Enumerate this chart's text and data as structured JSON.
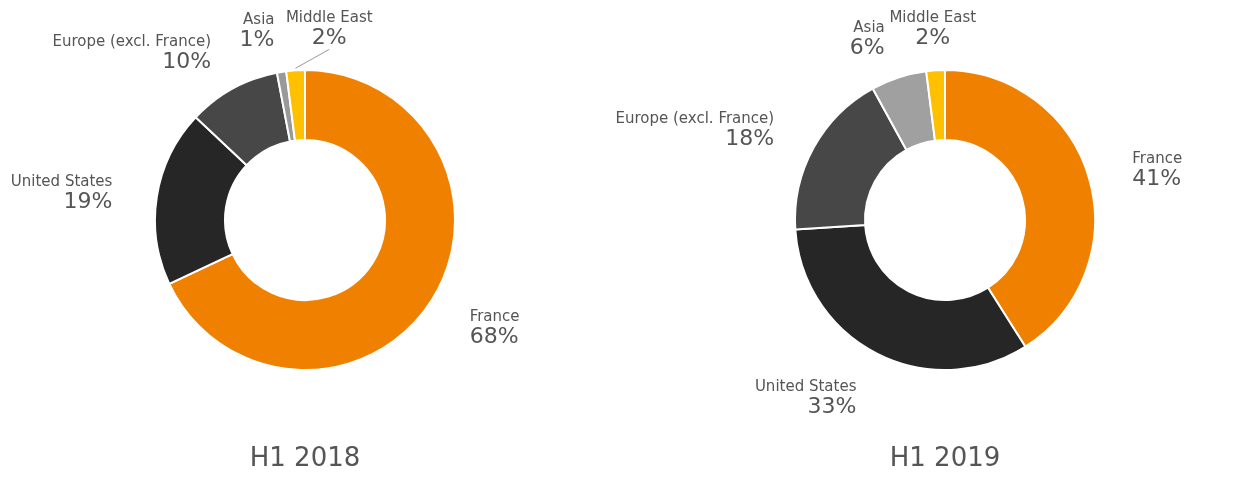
{
  "chart_data": [
    {
      "type": "donut",
      "title": "H1 2018",
      "categories": [
        "France",
        "United States",
        "Europe (excl. France)",
        "Asia",
        "Middle East"
      ],
      "values": [
        68,
        19,
        10,
        1,
        2
      ],
      "value_labels": [
        "68%",
        "19%",
        "10%",
        "1%",
        "2%"
      ],
      "colors": [
        "#f08000",
        "#262626",
        "#474747",
        "#999999",
        "#ffc000"
      ]
    },
    {
      "type": "donut",
      "title": "H1 2019",
      "categories": [
        "France",
        "United States",
        "Europe (excl. France)",
        "Asia",
        "Middle East"
      ],
      "values": [
        41,
        33,
        18,
        6,
        2
      ],
      "value_labels": [
        "41%",
        "33%",
        "18%",
        "6%",
        "2%"
      ],
      "colors": [
        "#f08000",
        "#262626",
        "#474747",
        "#a0a0a0",
        "#ffc000"
      ]
    }
  ]
}
